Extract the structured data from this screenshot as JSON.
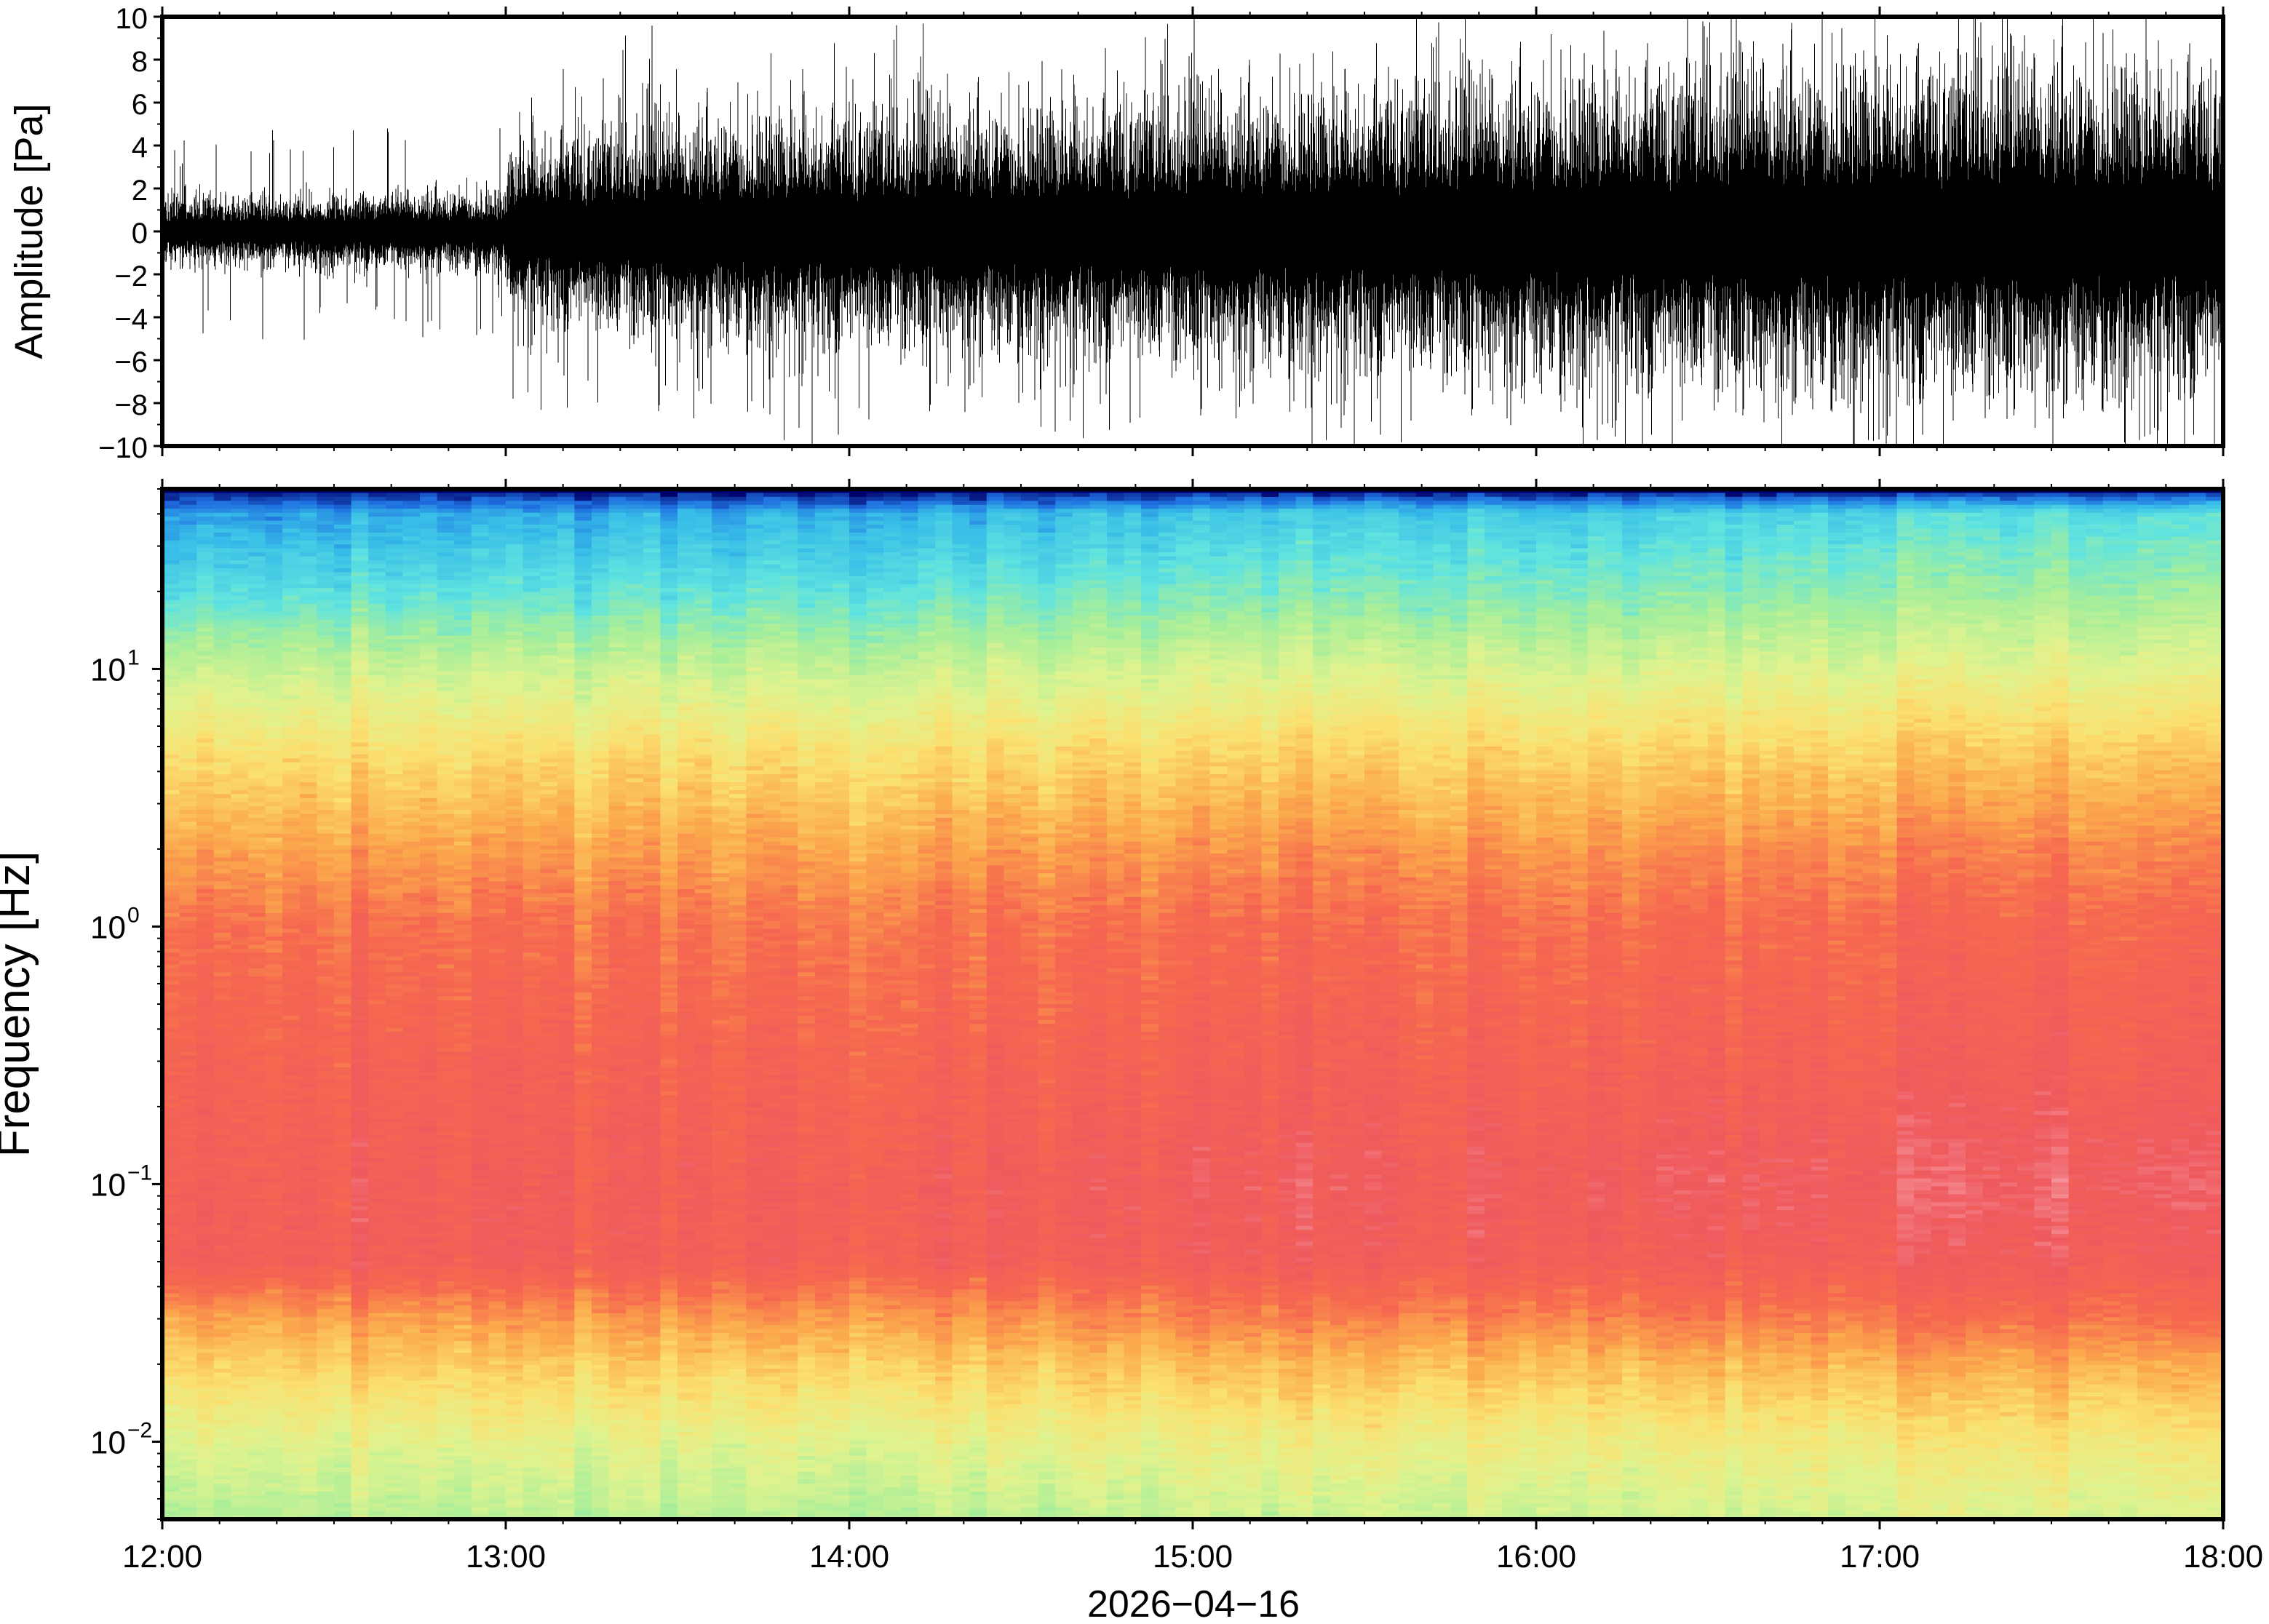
{
  "chart_data": [
    {
      "type": "line",
      "panel": "waveform",
      "ylabel": "Amplitude [Pa]",
      "ylim": [
        -10,
        10
      ],
      "yticks": [
        "10",
        "8",
        "6",
        "4",
        "2",
        "0",
        "−2",
        "−4",
        "−6",
        "−8",
        "−10"
      ],
      "ytick_values": [
        10,
        8,
        6,
        4,
        2,
        0,
        -2,
        -4,
        -6,
        -8,
        -10
      ],
      "x_range": [
        "12:00",
        "18:00"
      ],
      "envelope": {
        "x": [
          "12:00",
          "12:30",
          "13:00",
          "13:01",
          "13:30",
          "14:00",
          "14:30",
          "15:00",
          "15:30",
          "16:00",
          "16:30",
          "17:00",
          "17:30",
          "18:00"
        ],
        "typical_abs_amplitude": [
          1.0,
          1.1,
          1.2,
          2.6,
          3.2,
          3.4,
          3.5,
          3.8,
          4.0,
          4.3,
          4.6,
          4.8,
          4.8,
          4.6
        ],
        "peak_abs_amplitude": [
          5.0,
          5.5,
          5.8,
          8.0,
          10.0,
          10.0,
          9.5,
          10.0,
          10.0,
          10.0,
          10.0,
          10.0,
          10.0,
          10.0
        ]
      },
      "line_color": "#000000"
    },
    {
      "type": "heatmap",
      "panel": "spectrogram",
      "ylabel": "Frequency [Hz]",
      "xlabel": "2026−04−16",
      "y_scale": "log",
      "ylim": [
        0.005,
        50
      ],
      "yticks": [
        {
          "base": "10",
          "exp": "1",
          "value": 10
        },
        {
          "base": "10",
          "exp": "0",
          "value": 1
        },
        {
          "base": "10",
          "exp": "−1",
          "value": 0.1
        },
        {
          "base": "10",
          "exp": "−2",
          "value": 0.01
        }
      ],
      "xticks": [
        "12:00",
        "13:00",
        "14:00",
        "15:00",
        "16:00",
        "17:00",
        "18:00"
      ],
      "colormap": [
        "#00006b",
        "#1f6fe0",
        "#38bde8",
        "#5fe3e0",
        "#a6ee9a",
        "#dff38f",
        "#fbe070",
        "#fba84c",
        "#f6684f",
        "#ef5a5e",
        "#f6a0a8"
      ],
      "power_profile": {
        "frequency_hz": [
          50,
          40,
          20,
          10,
          5,
          2,
          1,
          0.3,
          0.1,
          0.05,
          0.03,
          0.02,
          0.01,
          0.005
        ],
        "relative_level_start": [
          0.0,
          0.15,
          0.28,
          0.45,
          0.58,
          0.7,
          0.78,
          0.83,
          0.85,
          0.86,
          0.7,
          0.62,
          0.5,
          0.42
        ],
        "relative_level_end": [
          0.0,
          0.3,
          0.4,
          0.52,
          0.64,
          0.76,
          0.82,
          0.86,
          0.92,
          0.88,
          0.8,
          0.7,
          0.58,
          0.5
        ]
      }
    }
  ]
}
